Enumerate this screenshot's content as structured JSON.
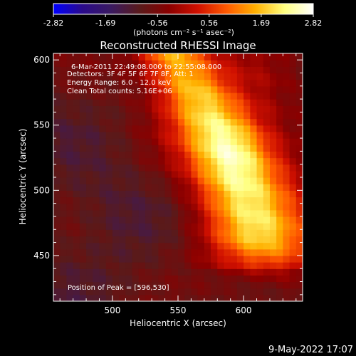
{
  "chart_data": {
    "type": "heatmap",
    "title": "Reconstructed RHESSI Image",
    "xlabel": "Heliocentric X (arcsec)",
    "ylabel": "Heliocentric Y (arcsec)",
    "xlim": [
      455,
      645
    ],
    "ylim": [
      415,
      605
    ],
    "x_ticks": [
      500,
      550,
      600
    ],
    "y_ticks": [
      450,
      500,
      550,
      600
    ],
    "colorbar": {
      "label": "(photons cm⁻² s⁻¹ asec⁻²)",
      "range": [
        -2.82,
        2.82
      ],
      "tick_values": [
        -2.82,
        -1.69,
        -0.56,
        0.56,
        1.69,
        2.82
      ],
      "tick_labels": [
        "-2.82",
        "-1.69",
        "-0.56",
        "0.56",
        "1.69",
        "2.82"
      ]
    },
    "colormap": [
      "#0000ff",
      "#2a0a8a",
      "#3a1a60",
      "#5a1a1a",
      "#8a0000",
      "#d01000",
      "#ff5a00",
      "#ffb000",
      "#ffff80",
      "#ffffff"
    ],
    "annotations": [
      "6-Mar-2011 22:49:08.000 to 22:55:08.000",
      "Detectors: 3F 4F 5F 6F 7F 8F, Att: 1",
      "Energy Range: 6.0 - 12.0 keV",
      "Clean     Total counts: 5.16E+06"
    ],
    "peak_label": "Position of Peak = [596,530]",
    "peak": [
      596,
      530
    ],
    "footer_timestamp": "9-May-2022 17:07"
  }
}
